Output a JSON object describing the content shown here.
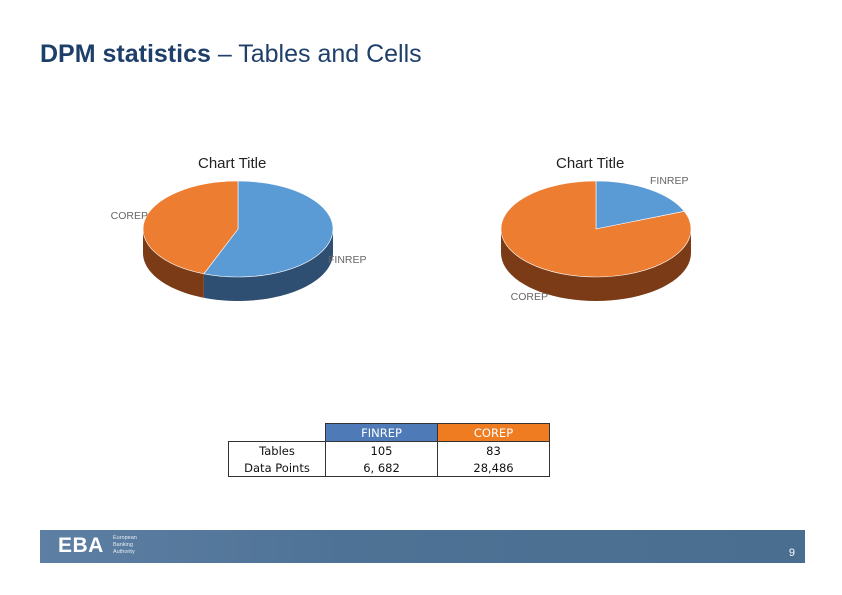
{
  "slide": {
    "title_bold": "DPM statistics",
    "title_rest": " – Tables and Cells"
  },
  "colors": {
    "finrep": "#5b9bd5",
    "finrep_side": "#2f4f72",
    "corep": "#ed7d31",
    "corep_side": "#7a3b16",
    "title": "#1f3f6b"
  },
  "chart_data": [
    {
      "type": "pie",
      "style": "3d",
      "title": "Chart Title",
      "metric": "Tables",
      "slices": [
        {
          "label": "FINREP",
          "value": 105
        },
        {
          "label": "COREP",
          "value": 83
        }
      ],
      "legend": "none"
    },
    {
      "type": "pie",
      "style": "3d",
      "title": "Chart Title",
      "metric": "Data Points",
      "slices": [
        {
          "label": "FINREP",
          "value": 6682
        },
        {
          "label": "COREP",
          "value": 28486
        }
      ],
      "legend": "none"
    }
  ],
  "table": {
    "columns": [
      "FINREP",
      "COREP"
    ],
    "rows": [
      {
        "label": "Tables",
        "values": [
          "105",
          "83"
        ]
      },
      {
        "label": "Data Points",
        "values": [
          "6, 682",
          "28,486"
        ]
      }
    ]
  },
  "footer": {
    "logo": "EBA",
    "org_lines": [
      "European",
      "Banking",
      "Authority"
    ],
    "page": "9"
  }
}
